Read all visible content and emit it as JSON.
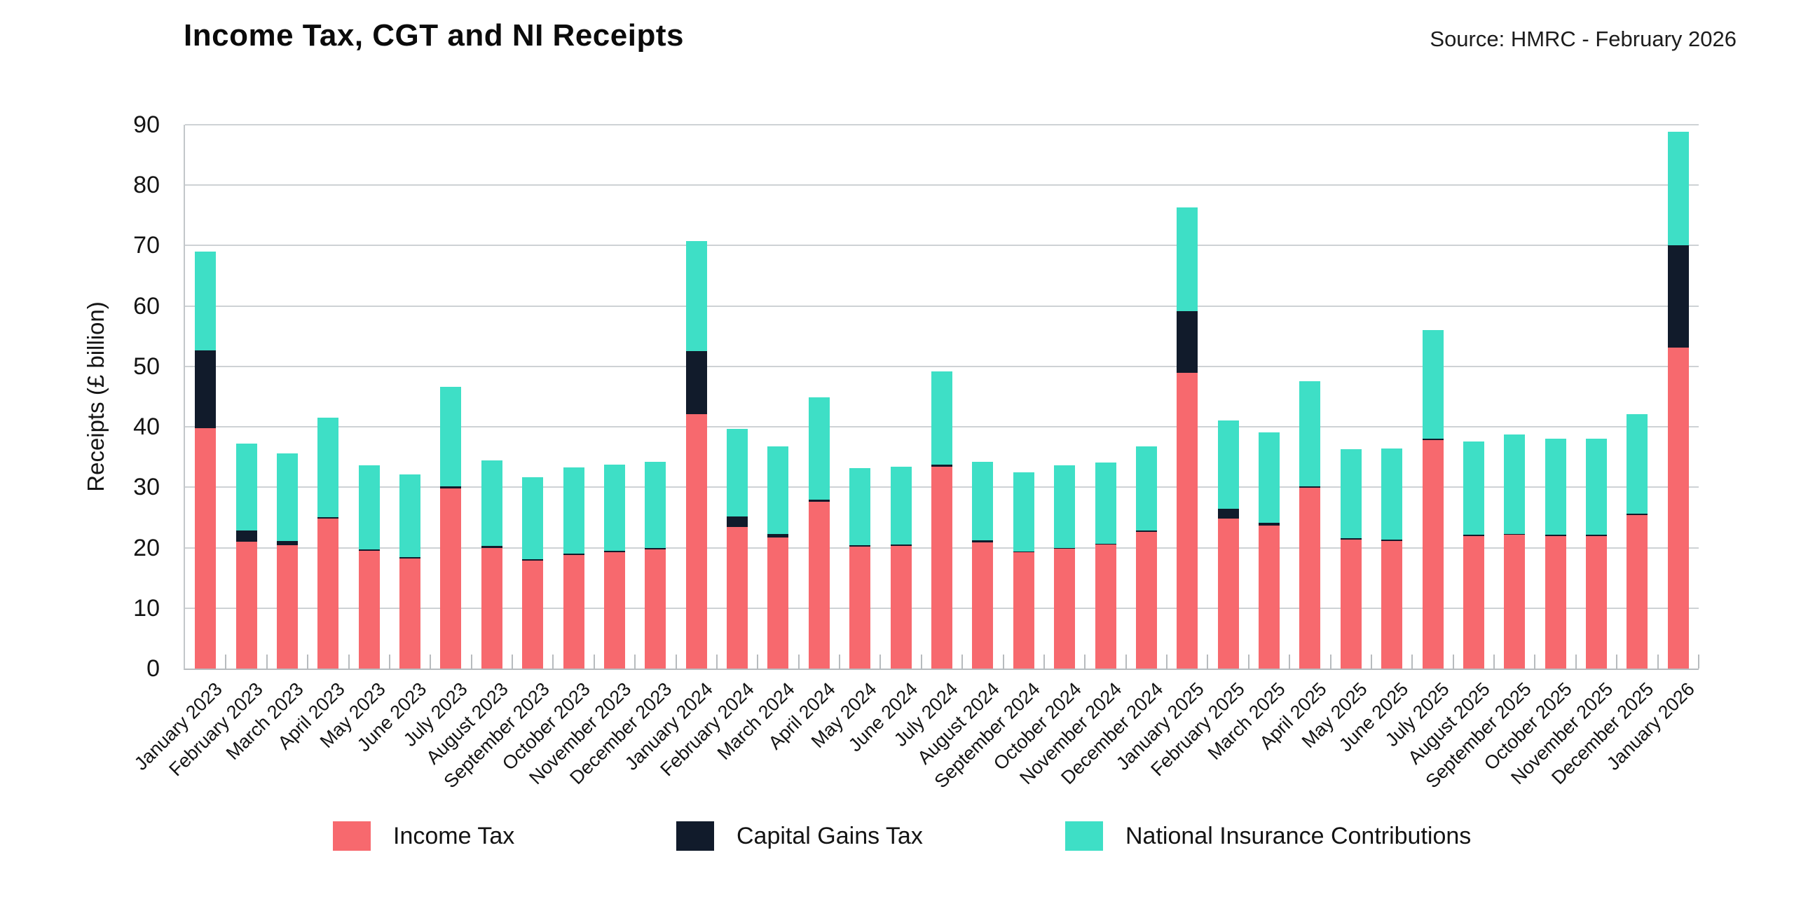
{
  "title": "Income Tax, CGT and NI Receipts",
  "source": "Source: HMRC - February 2026",
  "chart_data": {
    "type": "bar",
    "stacked": true,
    "title": "Income Tax, CGT and NI Receipts",
    "source": "Source: HMRC - February 2026",
    "xlabel": "",
    "ylabel": "Receipts (£ billion)",
    "ylim": [
      0,
      90
    ],
    "ytick_step": 10,
    "grid": "horizontal",
    "legend_position": "bottom",
    "x_label_rotation_deg": 45,
    "categories": [
      "January 2023",
      "February 2023",
      "March 2023",
      "April 2023",
      "May 2023",
      "June 2023",
      "July 2023",
      "August 2023",
      "September 2023",
      "October 2023",
      "November 2023",
      "December 2023",
      "January 2024",
      "February 2024",
      "March 2024",
      "April 2024",
      "May 2024",
      "June 2024",
      "July 2024",
      "August 2024",
      "September 2024",
      "October 2024",
      "November 2024",
      "December 2024",
      "January 2025",
      "February 2025",
      "March 2025",
      "April 2025",
      "May 2025",
      "June 2025",
      "July 2025",
      "August 2025",
      "September 2025",
      "October 2025",
      "November 2025",
      "December 2025",
      "January 2026"
    ],
    "series": [
      {
        "name": "Income Tax",
        "color": "#F7696E",
        "values": [
          39.8,
          21.0,
          20.4,
          24.8,
          19.5,
          18.2,
          29.8,
          20.0,
          17.9,
          18.8,
          19.2,
          19.7,
          42.1,
          23.4,
          21.7,
          27.6,
          20.2,
          20.3,
          33.4,
          20.9,
          19.2,
          19.8,
          20.5,
          22.6,
          49.0,
          24.8,
          23.7,
          29.9,
          21.4,
          21.1,
          37.8,
          21.9,
          22.1,
          21.9,
          21.9,
          25.4,
          53.1
        ]
      },
      {
        "name": "Capital Gains Tax",
        "color": "#111B2B",
        "values": [
          12.8,
          1.9,
          0.7,
          0.3,
          0.2,
          0.2,
          0.3,
          0.3,
          0.2,
          0.2,
          0.3,
          0.3,
          10.4,
          1.8,
          0.6,
          0.3,
          0.2,
          0.2,
          0.3,
          0.3,
          0.2,
          0.2,
          0.2,
          0.3,
          10.2,
          1.7,
          0.4,
          0.3,
          0.2,
          0.2,
          0.3,
          0.2,
          0.2,
          0.2,
          0.2,
          0.2,
          16.9
        ]
      },
      {
        "name": "National Insurance Contributions",
        "color": "#3EDFC6",
        "values": [
          16.4,
          14.3,
          14.5,
          16.4,
          13.9,
          13.7,
          16.5,
          14.2,
          13.6,
          14.3,
          14.2,
          14.2,
          18.3,
          14.5,
          14.5,
          17.0,
          12.8,
          12.9,
          15.5,
          13.0,
          13.1,
          13.6,
          13.4,
          13.9,
          17.1,
          14.6,
          15.0,
          17.3,
          14.7,
          15.1,
          17.9,
          15.5,
          16.4,
          16.0,
          15.9,
          16.5,
          18.8
        ]
      }
    ],
    "totals": [
      69.0,
      37.2,
      35.6,
      41.5,
      33.6,
      32.1,
      46.6,
      34.5,
      31.7,
      33.3,
      33.7,
      34.2,
      70.8,
      39.7,
      36.8,
      44.9,
      33.2,
      33.4,
      49.2,
      34.2,
      32.5,
      33.6,
      34.1,
      36.8,
      76.3,
      41.1,
      39.1,
      47.5,
      36.3,
      36.4,
      56.0,
      37.6,
      38.7,
      38.1,
      38.0,
      42.1,
      88.8
    ]
  },
  "style": {
    "gridline_color": "#ced2d5",
    "axis_color": "#b7bbbe",
    "text_color": "#141414",
    "background_color": "#ffffff"
  }
}
